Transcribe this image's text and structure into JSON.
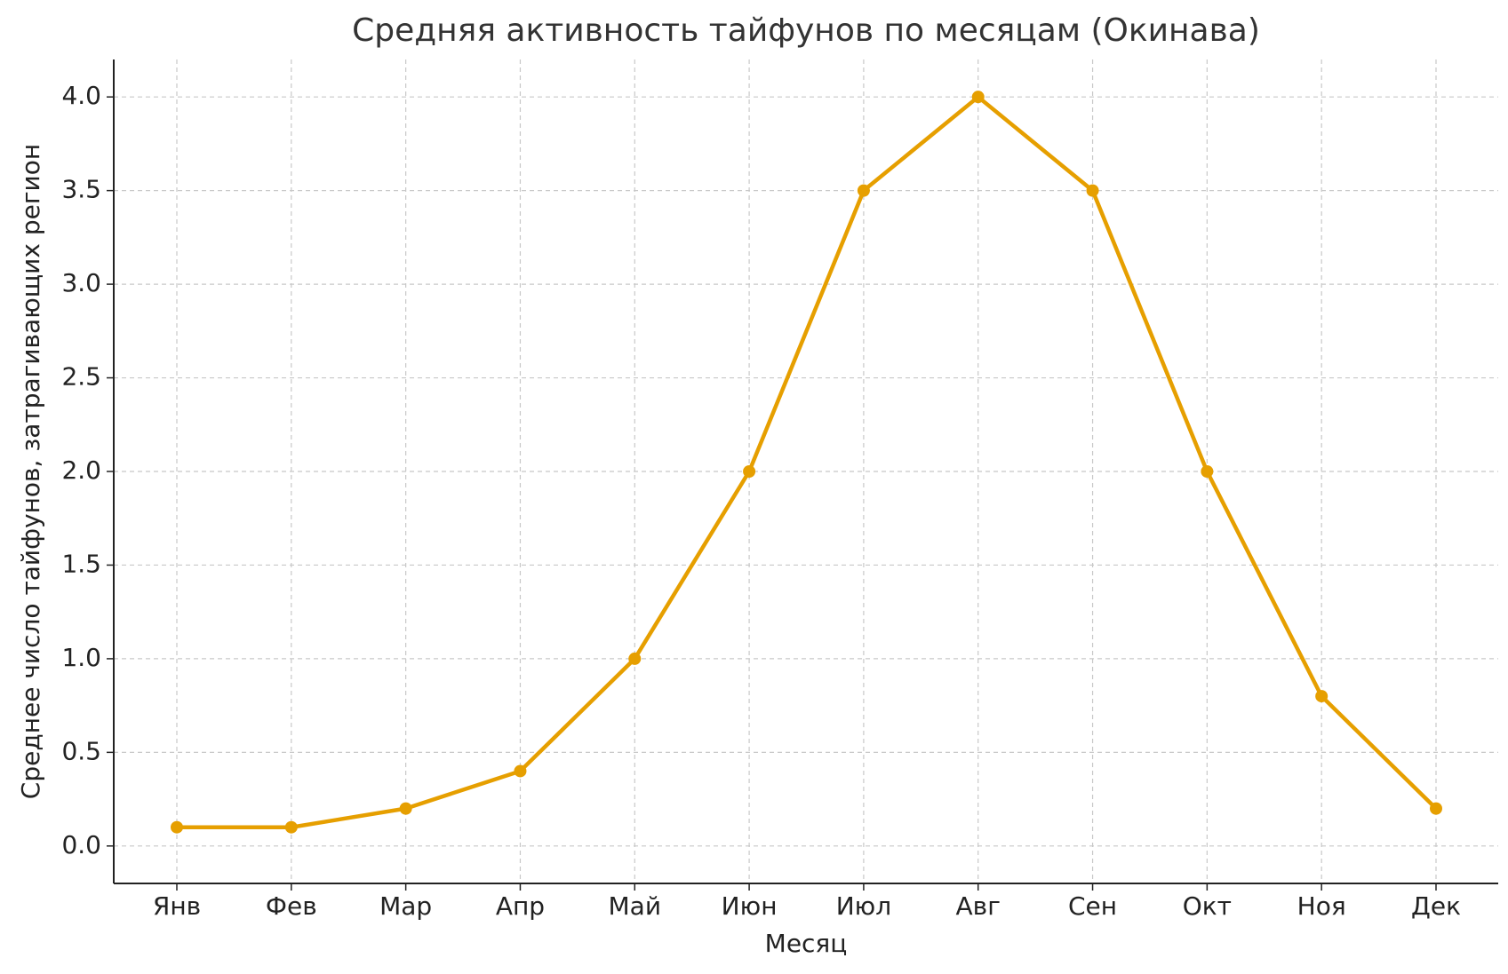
{
  "chart_data": {
    "type": "line",
    "title": "Средняя активность тайфунов по месяцам (Окинава)",
    "x_label": "Месяц",
    "y_label": "Среднее число тайфунов, затрагивающих регион",
    "categories": [
      "Янв",
      "Фев",
      "Мар",
      "Апр",
      "Май",
      "Июн",
      "Июл",
      "Авг",
      "Сен",
      "Окт",
      "Ноя",
      "Дек"
    ],
    "values": [
      0.1,
      0.1,
      0.2,
      0.4,
      1.0,
      2.0,
      3.5,
      4.0,
      3.5,
      2.0,
      0.8,
      0.2
    ],
    "color": "#e69f00",
    "ylim": [
      -0.2,
      4.2
    ],
    "yticks": [
      {
        "value": 0,
        "label": "0.0"
      },
      {
        "value": 0.5,
        "label": "0.5"
      },
      {
        "value": 1,
        "label": "1.0"
      },
      {
        "value": 1.5,
        "label": "1.5"
      },
      {
        "value": 2,
        "label": "2.0"
      },
      {
        "value": 2.5,
        "label": "2.5"
      },
      {
        "value": 3,
        "label": "3.0"
      },
      {
        "value": 3.5,
        "label": "3.5"
      },
      {
        "value": 4,
        "label": "4.0"
      }
    ],
    "grid": true
  }
}
